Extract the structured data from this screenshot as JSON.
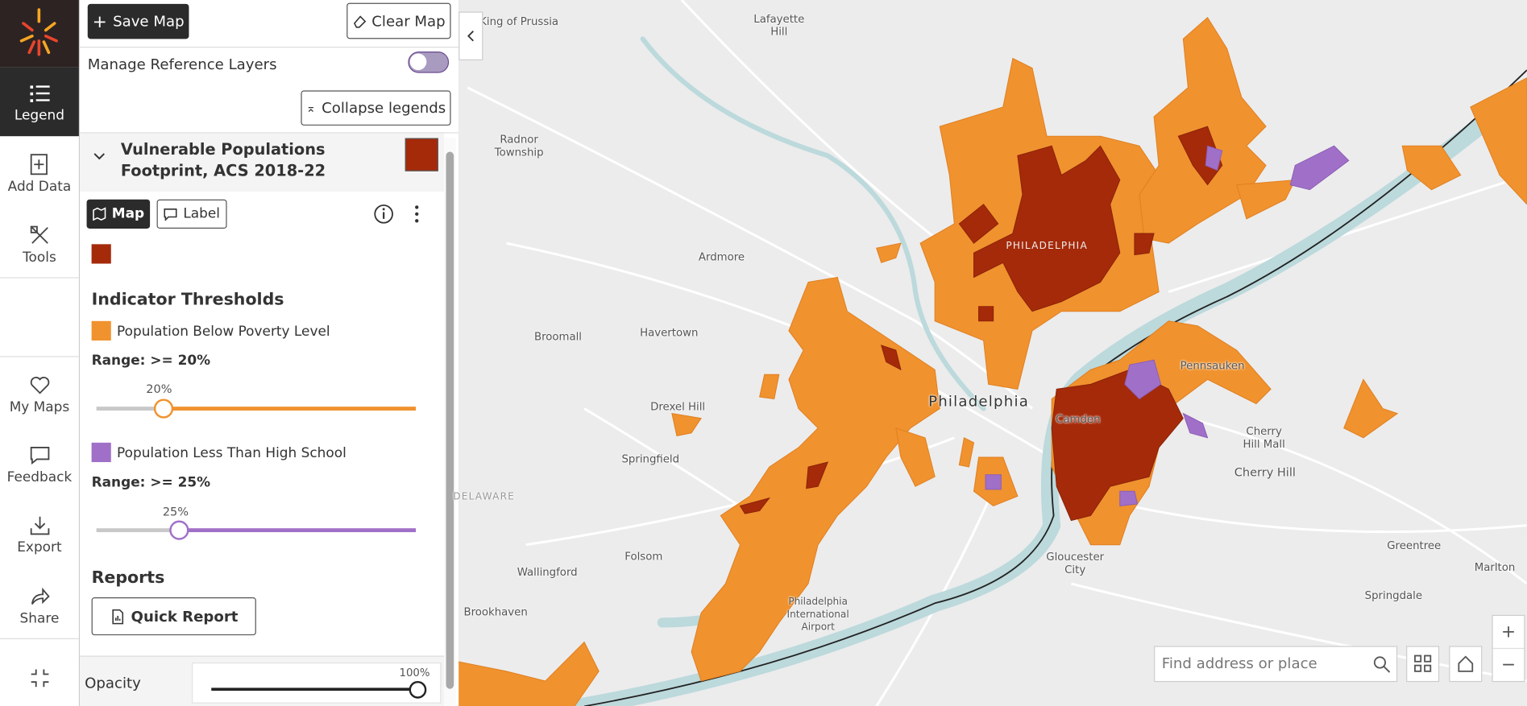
{
  "nav": {
    "items": [
      "Legend",
      "Add Data",
      "Tools",
      "My Maps",
      "Feedback",
      "Export",
      "Share"
    ]
  },
  "toolbar": {
    "save": "Save Map",
    "clear": "Clear Map",
    "reference_layers": "Manage Reference Layers",
    "collapse": "Collapse legends"
  },
  "layer": {
    "title": "Vulnerable Populations Footprint, ACS 2018-22",
    "tabs": [
      "Map",
      "Label"
    ],
    "section": "Indicator Thresholds",
    "indicators": [
      {
        "name": "Population Below Poverty Level",
        "range": "Range: >= 20%",
        "slider_label": "20%"
      },
      {
        "name": "Population Less Than High School",
        "range": "Range: >= 25%",
        "slider_label": "25%"
      }
    ],
    "reports": "Reports",
    "quick_report": "Quick Report"
  },
  "opacity": {
    "label": "Opacity",
    "value_label": "100%"
  },
  "search": {
    "placeholder": "Find address or place"
  },
  "map_labels": [
    "King of Prussia",
    "Lafayette Hill",
    "Radnor Township",
    "Ardmore",
    "Broomall",
    "Havertown",
    "Drexel Hill",
    "Springfield",
    "DELAWARE",
    "Wallingford",
    "Folsom",
    "Brookhaven",
    "Philadelphia International Airport",
    "PHILADELPHIA",
    "Philadelphia",
    "Camden",
    "Pennsauken",
    "Cherry Hill Mall",
    "Cherry Hill",
    "Gloucester City",
    "Greentree",
    "Marlton",
    "Springdale"
  ]
}
